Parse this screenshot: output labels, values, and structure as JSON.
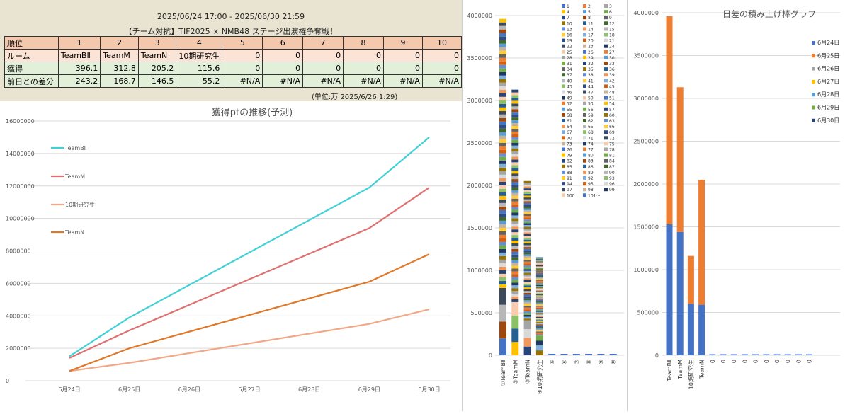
{
  "header": {
    "period": "2025/06/24 17:00 - 2025/06/30 21:59",
    "event_title": "【チーム対抗】TIF2025 × NMB48 ステージ出演権争奪戦！",
    "unit_note": "(単位:万  2025/6/26 1:29)"
  },
  "table": {
    "rows": [
      [
        "順位",
        "1",
        "2",
        "3",
        "4",
        "5",
        "6",
        "7",
        "8",
        "9",
        "10"
      ],
      [
        "ルーム",
        "TeamBⅡ",
        "TeamM",
        "TeamN",
        "10期研究生",
        "0",
        "0",
        "0",
        "0",
        "0",
        "0"
      ],
      [
        "獲得",
        "396.1",
        "312.8",
        "205.2",
        "115.6",
        "0",
        "0",
        "0",
        "0",
        "0",
        "0"
      ],
      [
        "前日との差分",
        "243.2",
        "168.7",
        "146.5",
        "55.2",
        "#N/A",
        "#N/A",
        "#N/A",
        "#N/A",
        "#N/A",
        "#N/A"
      ]
    ]
  },
  "chart_data": [
    {
      "type": "line",
      "title": "獲得ptの推移(予測)",
      "xlabel": "",
      "ylabel": "",
      "x": [
        "6月24日",
        "6月25日",
        "6月26日",
        "6月27日",
        "6月28日",
        "6月29日",
        "6月30日"
      ],
      "ylim": [
        0,
        16000000
      ],
      "yticks": [
        0,
        2000000,
        4000000,
        6000000,
        8000000,
        10000000,
        12000000,
        14000000,
        16000000
      ],
      "legend_position": "left",
      "series": [
        {
          "name": "TeamBⅡ",
          "color": "#40d0d8",
          "points": [
            [
              0,
              1500000
            ],
            [
              1,
              3900000
            ],
            [
              5,
              11900000
            ],
            [
              6,
              15000000
            ]
          ]
        },
        {
          "name": "TeamM",
          "color": "#e07070",
          "points": [
            [
              0,
              1400000
            ],
            [
              1,
              3100000
            ],
            [
              5,
              9400000
            ],
            [
              6,
              11900000
            ]
          ]
        },
        {
          "name": "10期研究生",
          "color": "#f0a888",
          "points": [
            [
              0,
              600000
            ],
            [
              1,
              1100000
            ],
            [
              5,
              3500000
            ],
            [
              6,
              4400000
            ]
          ]
        },
        {
          "name": "TeamN",
          "color": "#e07828",
          "points": [
            [
              0,
              600000
            ],
            [
              1,
              2000000
            ],
            [
              5,
              6100000
            ],
            [
              6,
              7800000
            ]
          ]
        }
      ]
    },
    {
      "type": "bar",
      "stacked": true,
      "title": "",
      "categories": [
        "①TeamBⅡ",
        "②TeamM",
        "③TeamN",
        "④10期研究生",
        "⑤",
        "⑥",
        "⑦",
        "⑧",
        "⑨",
        "⑩"
      ],
      "totals": [
        3961000,
        3128000,
        2052000,
        1156000,
        0,
        0,
        0,
        0,
        0,
        0
      ],
      "ylim": [
        0,
        4000000
      ],
      "yticks": [
        0,
        500000,
        1000000,
        1500000,
        2000000,
        2500000,
        3000000,
        3500000,
        4000000
      ],
      "legend_entries": [
        "1",
        "2",
        "3",
        "4",
        "5",
        "6",
        "7",
        "8",
        "9",
        "10",
        "11",
        "12",
        "13",
        "14",
        "15",
        "16",
        "17",
        "18",
        "19",
        "20",
        "21",
        "22",
        "23",
        "24",
        "25",
        "26",
        "27",
        "28",
        "29",
        "30",
        "31",
        "32",
        "33",
        "34",
        "35",
        "36",
        "37",
        "38",
        "39",
        "40",
        "41",
        "42",
        "43",
        "44",
        "45",
        "46",
        "47",
        "48",
        "49",
        "50",
        "51",
        "52",
        "53",
        "54",
        "55",
        "56",
        "57",
        "58",
        "59",
        "60",
        "61",
        "62",
        "63",
        "64",
        "65",
        "66",
        "67",
        "68",
        "69",
        "70",
        "71",
        "72",
        "73",
        "74",
        "75",
        "76",
        "77",
        "78",
        "79",
        "80",
        "81",
        "82",
        "83",
        "84",
        "85",
        "86",
        "87",
        "88",
        "89",
        "90",
        "91",
        "92",
        "93",
        "94",
        "95",
        "96",
        "97",
        "98",
        "99",
        "100",
        "101～"
      ],
      "legend_position": "right"
    },
    {
      "type": "bar",
      "stacked": true,
      "title": "日差の積み上げ棒グラフ",
      "categories": [
        "TeamBⅡ",
        "TeamM",
        "10期研究生",
        "TeamN",
        "0",
        "0",
        "0",
        "0",
        "0",
        "0",
        "0",
        "0",
        "0",
        "0"
      ],
      "ylim": [
        0,
        4000000
      ],
      "yticks": [
        0,
        500000,
        1000000,
        1500000,
        2000000,
        2500000,
        3000000,
        3500000,
        4000000
      ],
      "series": [
        {
          "name": "6月24日",
          "color": "#4472c4",
          "values": [
            1530000,
            1440000,
            600000,
            590000,
            0,
            0,
            0,
            0,
            0,
            0,
            0,
            0,
            0,
            0
          ]
        },
        {
          "name": "6月25日",
          "color": "#ed7d31",
          "values": [
            2430000,
            1690000,
            560000,
            1460000,
            0,
            0,
            0,
            0,
            0,
            0,
            0,
            0,
            0,
            0
          ]
        },
        {
          "name": "6月26日",
          "color": "#a5a5a5",
          "values": [
            0,
            0,
            0,
            0,
            0,
            0,
            0,
            0,
            0,
            0,
            0,
            0,
            0,
            0
          ]
        },
        {
          "name": "6月27日",
          "color": "#ffc000",
          "values": [
            0,
            0,
            0,
            0,
            0,
            0,
            0,
            0,
            0,
            0,
            0,
            0,
            0,
            0
          ]
        },
        {
          "name": "6月28日",
          "color": "#5b9bd5",
          "values": [
            0,
            0,
            0,
            0,
            0,
            0,
            0,
            0,
            0,
            0,
            0,
            0,
            0,
            0
          ]
        },
        {
          "name": "6月29日",
          "color": "#70ad47",
          "values": [
            0,
            0,
            0,
            0,
            0,
            0,
            0,
            0,
            0,
            0,
            0,
            0,
            0,
            0
          ]
        },
        {
          "name": "6月30日",
          "color": "#264478",
          "values": [
            0,
            0,
            0,
            0,
            0,
            0,
            0,
            0,
            0,
            0,
            0,
            0,
            0,
            0
          ]
        }
      ],
      "legend_position": "right"
    }
  ]
}
